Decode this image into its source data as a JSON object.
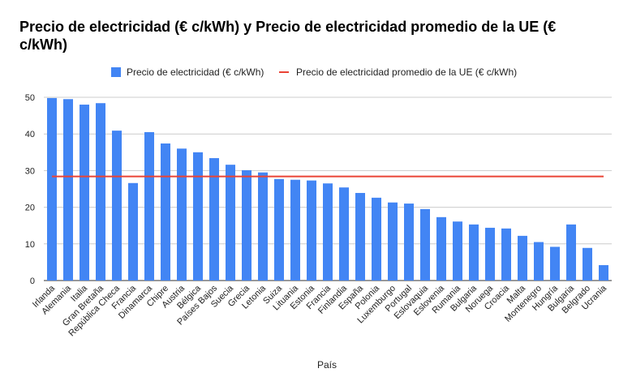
{
  "chart_data": {
    "type": "bar",
    "title": "Precio de electricidad (€ c/kWh) y Precio de electricidad promedio de la UE (€ c/kWh)",
    "xlabel": "País",
    "ylabel": "",
    "ylim": [
      0,
      50
    ],
    "yticks": [
      "0",
      "10",
      "20",
      "30",
      "40",
      "50"
    ],
    "grid": true,
    "legend_position": "top",
    "categories": [
      "Irlanda",
      "Alemania",
      "Italia",
      "Gran Bretaña",
      "República Checa",
      "Francia",
      "Dinamarca",
      "Chipre",
      "Austria",
      "Bélgica",
      "Países Bajos",
      "Suecia",
      "Grecia",
      "Letonia",
      "Suiza",
      "Lituania",
      "Estonia",
      "Francia",
      "Finlandia",
      "España",
      "Polonia",
      "Luxemburgo",
      "Portugal",
      "Eslovaquia",
      "Eslovenia",
      "Rumania",
      "Bulgaria",
      "Noruega",
      "Croacia",
      "Malta",
      "Montenegro",
      "Hungría",
      "Bulgaria",
      "Belgrado",
      "Ucrania"
    ],
    "series": [
      {
        "name": "Precio de electricidad (€ c/kWh)",
        "type": "bar",
        "color": "#4285f4",
        "values": [
          49.8,
          49.5,
          48.0,
          48.4,
          40.9,
          26.6,
          40.5,
          37.4,
          36.0,
          35.0,
          33.4,
          31.6,
          30.1,
          29.5,
          27.7,
          27.5,
          27.3,
          26.5,
          25.4,
          23.9,
          22.6,
          21.3,
          21.0,
          19.5,
          17.3,
          16.1,
          15.3,
          14.4,
          14.2,
          12.2,
          10.5,
          9.2,
          15.3,
          8.9,
          4.2
        ]
      },
      {
        "name": "Precio de electricidad promedio de la UE (€ c/kWh)",
        "type": "line",
        "color": "#ea4335",
        "values": [
          28.4,
          28.4,
          28.4,
          28.4,
          28.4,
          28.4,
          28.4,
          28.4,
          28.4,
          28.4,
          28.4,
          28.4,
          28.4,
          28.4,
          28.4,
          28.4,
          28.4,
          28.4,
          28.4,
          28.4,
          28.4,
          28.4,
          28.4,
          28.4,
          28.4,
          28.4,
          28.4,
          28.4,
          28.4,
          28.4,
          28.4,
          28.4,
          28.4,
          28.4,
          28.4
        ]
      }
    ]
  }
}
